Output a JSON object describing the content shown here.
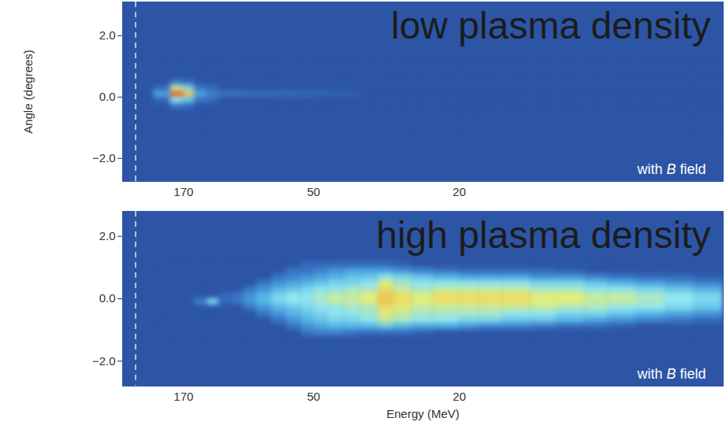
{
  "chart_data": [
    {
      "type": "heatmap",
      "title": "low plasma density",
      "annotations": [
        "with B field"
      ],
      "ylabel": "Angle (degrees)",
      "xlim": [
        400,
        6.5
      ],
      "xticks": [
        170,
        50,
        20
      ],
      "ylim": [
        -2.75,
        3.1
      ],
      "yticks": [
        -2,
        0,
        2
      ],
      "reference_line": 325,
      "intensity_range": [
        0,
        1
      ],
      "energy_bins": [
        250,
        200,
        170,
        150,
        130,
        115,
        100,
        90,
        80,
        70,
        62,
        55,
        50,
        45,
        40,
        36,
        32,
        29,
        26,
        23,
        20,
        18,
        16,
        14,
        12.5,
        11,
        10,
        9,
        8,
        7.2,
        6.5
      ],
      "angle_bins": [
        -1.2,
        -1,
        -0.8,
        -0.6,
        -0.4,
        -0.2,
        0,
        0.2,
        0.4,
        0.6,
        0.8,
        1,
        1.2
      ],
      "intensity": [
        [
          0,
          0,
          0,
          0,
          0,
          0,
          0,
          0,
          0,
          0,
          0,
          0,
          0,
          0,
          0,
          0,
          0,
          0,
          0,
          0,
          0,
          0,
          0,
          0,
          0,
          0,
          0,
          0,
          0,
          0
        ],
        [
          0,
          0,
          0,
          0,
          0,
          0,
          0,
          0,
          0,
          0,
          0,
          0,
          0,
          0,
          0,
          0,
          0,
          0,
          0,
          0,
          0,
          0,
          0,
          0,
          0,
          0,
          0,
          0,
          0,
          0
        ],
        [
          0,
          0,
          0,
          0,
          0,
          0,
          0,
          0,
          0,
          0,
          0,
          0,
          0,
          0,
          0,
          0,
          0,
          0,
          0,
          0,
          0,
          0,
          0,
          0,
          0,
          0,
          0,
          0,
          0,
          0
        ],
        [
          0,
          0,
          0,
          0,
          0,
          0,
          0,
          0,
          0,
          0,
          0,
          0,
          0,
          0,
          0,
          0,
          0,
          0,
          0,
          0,
          0,
          0,
          0,
          0,
          0,
          0,
          0,
          0,
          0,
          0
        ],
        [
          0,
          0.15,
          0.1,
          0,
          0,
          0,
          0,
          0,
          0,
          0,
          0,
          0,
          0,
          0,
          0,
          0,
          0,
          0,
          0,
          0,
          0,
          0,
          0,
          0,
          0,
          0,
          0,
          0,
          0,
          0
        ],
        [
          0.1,
          0.5,
          0.4,
          0.15,
          0.1,
          0,
          0,
          0,
          0,
          0,
          0,
          0,
          0,
          0,
          0,
          0,
          0,
          0,
          0,
          0,
          0,
          0,
          0,
          0,
          0,
          0,
          0,
          0,
          0,
          0
        ],
        [
          0.3,
          0.95,
          0.75,
          0.3,
          0.2,
          0.15,
          0.15,
          0.12,
          0.12,
          0.1,
          0.1,
          0.1,
          0.08,
          0.06,
          0.05,
          0,
          0,
          0,
          0,
          0,
          0,
          0,
          0,
          0,
          0,
          0,
          0,
          0,
          0,
          0
        ],
        [
          0.1,
          0.6,
          0.45,
          0.15,
          0.1,
          0,
          0,
          0,
          0,
          0,
          0,
          0,
          0,
          0,
          0,
          0,
          0,
          0,
          0,
          0,
          0,
          0,
          0,
          0,
          0,
          0,
          0,
          0,
          0,
          0
        ],
        [
          0,
          0.15,
          0.1,
          0,
          0,
          0,
          0,
          0,
          0,
          0,
          0,
          0,
          0,
          0,
          0,
          0,
          0,
          0,
          0,
          0,
          0,
          0,
          0,
          0,
          0,
          0,
          0,
          0,
          0,
          0
        ],
        [
          0,
          0,
          0,
          0,
          0,
          0,
          0,
          0,
          0,
          0,
          0,
          0,
          0,
          0,
          0,
          0,
          0,
          0,
          0,
          0,
          0,
          0,
          0,
          0,
          0,
          0,
          0,
          0,
          0,
          0
        ],
        [
          0,
          0,
          0,
          0,
          0,
          0,
          0,
          0,
          0,
          0,
          0,
          0,
          0,
          0,
          0,
          0,
          0,
          0,
          0,
          0,
          0,
          0,
          0,
          0,
          0,
          0,
          0,
          0,
          0,
          0
        ],
        [
          0,
          0,
          0,
          0,
          0,
          0,
          0,
          0,
          0,
          0,
          0,
          0,
          0,
          0,
          0,
          0,
          0,
          0,
          0,
          0,
          0,
          0,
          0,
          0,
          0,
          0,
          0,
          0,
          0,
          0
        ]
      ]
    },
    {
      "type": "heatmap",
      "title": "high plasma density",
      "annotations": [
        "with B field"
      ],
      "xlabel": "Energy (MeV)",
      "xlim": [
        400,
        6.5
      ],
      "xticks": [
        170,
        50,
        20
      ],
      "ylim": [
        -2.8,
        2.8
      ],
      "yticks": [
        -2,
        0,
        2
      ],
      "reference_line": 325,
      "intensity_range": [
        0,
        1
      ],
      "energy_bins": [
        250,
        200,
        170,
        150,
        130,
        115,
        100,
        90,
        80,
        70,
        62,
        55,
        50,
        45,
        40,
        36,
        32,
        29,
        26,
        23,
        20,
        18,
        16,
        14,
        12.5,
        11,
        10,
        9,
        8,
        7.2,
        6.5
      ],
      "angle_bins": [
        -1.2,
        -1,
        -0.8,
        -0.6,
        -0.4,
        -0.2,
        0,
        0.2,
        0.4,
        0.6,
        0.8,
        1,
        1.2
      ],
      "intensity": [
        [
          0,
          0,
          0,
          0,
          0,
          0,
          0,
          0,
          0,
          0,
          0,
          0.15,
          0.2,
          0.2,
          0.15,
          0.1,
          0.1,
          0.1,
          0.05,
          0,
          0,
          0,
          0,
          0,
          0,
          0,
          0,
          0,
          0,
          0
        ],
        [
          0,
          0,
          0,
          0,
          0,
          0,
          0,
          0,
          0,
          0,
          0.15,
          0.25,
          0.3,
          0.35,
          0.35,
          0.35,
          0.4,
          0.35,
          0.3,
          0.3,
          0.25,
          0.2,
          0.2,
          0.15,
          0.1,
          0.1,
          0.05,
          0,
          0,
          0
        ],
        [
          0,
          0,
          0,
          0,
          0,
          0,
          0,
          0,
          0,
          0.15,
          0.25,
          0.35,
          0.4,
          0.45,
          0.45,
          0.5,
          0.6,
          0.55,
          0.5,
          0.5,
          0.45,
          0.45,
          0.4,
          0.4,
          0.35,
          0.3,
          0.25,
          0.2,
          0.15,
          0.1
        ],
        [
          0,
          0,
          0,
          0,
          0,
          0,
          0,
          0,
          0.15,
          0.25,
          0.35,
          0.4,
          0.45,
          0.5,
          0.5,
          0.55,
          0.65,
          0.6,
          0.55,
          0.55,
          0.55,
          0.55,
          0.5,
          0.5,
          0.45,
          0.45,
          0.4,
          0.35,
          0.3,
          0.25
        ],
        [
          0,
          0,
          0,
          0,
          0,
          0,
          0,
          0.15,
          0.25,
          0.35,
          0.4,
          0.45,
          0.5,
          0.5,
          0.55,
          0.55,
          0.7,
          0.65,
          0.6,
          0.6,
          0.6,
          0.6,
          0.6,
          0.6,
          0.55,
          0.55,
          0.5,
          0.5,
          0.45,
          0.4
        ],
        [
          0,
          0,
          0,
          0.2,
          0.45,
          0.1,
          0.15,
          0.25,
          0.35,
          0.45,
          0.5,
          0.5,
          0.55,
          0.6,
          0.6,
          0.65,
          0.75,
          0.7,
          0.65,
          0.7,
          0.7,
          0.7,
          0.7,
          0.65,
          0.65,
          0.6,
          0.6,
          0.55,
          0.5,
          0.45
        ],
        [
          0,
          0,
          0,
          0,
          0,
          0.1,
          0.15,
          0.25,
          0.35,
          0.45,
          0.5,
          0.5,
          0.55,
          0.6,
          0.6,
          0.65,
          0.75,
          0.7,
          0.65,
          0.7,
          0.7,
          0.7,
          0.7,
          0.65,
          0.65,
          0.6,
          0.6,
          0.55,
          0.5,
          0.45
        ],
        [
          0,
          0,
          0,
          0,
          0,
          0,
          0,
          0.15,
          0.25,
          0.35,
          0.4,
          0.45,
          0.5,
          0.5,
          0.55,
          0.55,
          0.7,
          0.6,
          0.55,
          0.6,
          0.6,
          0.6,
          0.6,
          0.55,
          0.55,
          0.5,
          0.5,
          0.45,
          0.4,
          0.35
        ],
        [
          0,
          0,
          0,
          0,
          0,
          0,
          0,
          0,
          0.15,
          0.25,
          0.3,
          0.35,
          0.4,
          0.45,
          0.45,
          0.5,
          0.65,
          0.55,
          0.5,
          0.5,
          0.5,
          0.5,
          0.5,
          0.45,
          0.45,
          0.4,
          0.35,
          0.3,
          0.25,
          0.2
        ],
        [
          0,
          0,
          0,
          0,
          0,
          0,
          0,
          0,
          0,
          0.15,
          0.2,
          0.25,
          0.3,
          0.35,
          0.4,
          0.4,
          0.5,
          0.45,
          0.4,
          0.35,
          0.3,
          0.3,
          0.3,
          0.25,
          0.25,
          0.2,
          0.15,
          0.1,
          0.1,
          0.05
        ],
        [
          0,
          0,
          0,
          0,
          0,
          0,
          0,
          0,
          0,
          0,
          0.15,
          0.15,
          0.2,
          0.25,
          0.3,
          0.3,
          0.3,
          0.25,
          0.2,
          0.15,
          0.1,
          0.1,
          0.1,
          0.1,
          0.05,
          0,
          0,
          0,
          0,
          0
        ],
        [
          0,
          0,
          0,
          0,
          0,
          0,
          0,
          0,
          0,
          0,
          0,
          0.1,
          0.1,
          0.1,
          0.1,
          0.1,
          0.1,
          0.05,
          0,
          0,
          0,
          0,
          0,
          0,
          0,
          0,
          0,
          0,
          0,
          0
        ]
      ]
    }
  ]
}
